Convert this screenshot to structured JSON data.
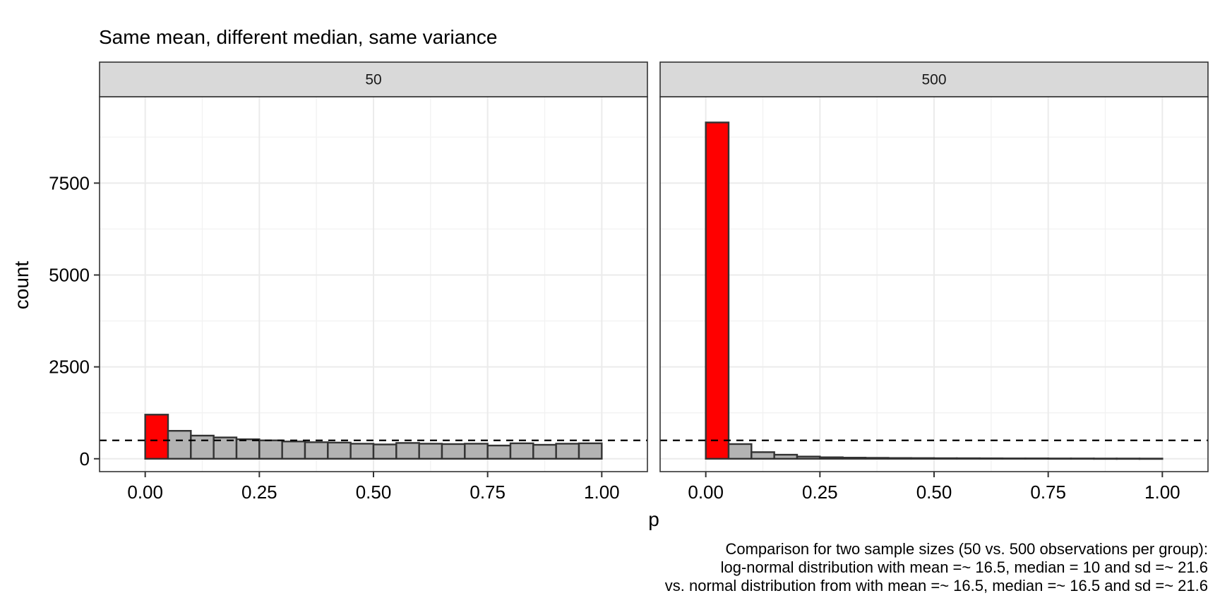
{
  "chart_data": {
    "type": "bar",
    "title": "Same mean, different median, same variance",
    "xlabel": "p",
    "ylabel": "count",
    "xlim": [
      -0.1,
      1.1
    ],
    "ylim": [
      -350,
      9850
    ],
    "x_ticks": [
      0.0,
      0.25,
      0.5,
      0.75,
      1.0
    ],
    "x_tick_labels": [
      "0.00",
      "0.25",
      "0.50",
      "0.75",
      "1.00"
    ],
    "y_ticks": [
      0,
      2500,
      5000,
      7500
    ],
    "y_tick_labels": [
      "0",
      "2500",
      "5000",
      "7500"
    ],
    "reference_line": {
      "y": 500,
      "style": "dashed"
    },
    "grid": true,
    "highlight_color": "#ff0000",
    "bar_color": "#b3b3b3",
    "bar_outline": "#333333",
    "bin_width": 0.05,
    "panels": [
      {
        "strip_label": "50",
        "bins_left": [
          0.0,
          0.05,
          0.1,
          0.15,
          0.2,
          0.25,
          0.3,
          0.35,
          0.4,
          0.45,
          0.5,
          0.55,
          0.6,
          0.65,
          0.7,
          0.75,
          0.8,
          0.85,
          0.9,
          0.95
        ],
        "values": [
          1200,
          760,
          630,
          580,
          530,
          500,
          470,
          450,
          440,
          410,
          390,
          430,
          410,
          400,
          410,
          360,
          420,
          380,
          410,
          420
        ],
        "highlighted": [
          true,
          false,
          false,
          false,
          false,
          false,
          false,
          false,
          false,
          false,
          false,
          false,
          false,
          false,
          false,
          false,
          false,
          false,
          false,
          false
        ]
      },
      {
        "strip_label": "500",
        "bins_left": [
          0.0,
          0.05,
          0.1,
          0.15,
          0.2,
          0.25,
          0.3,
          0.35,
          0.4,
          0.45,
          0.5,
          0.55,
          0.6,
          0.65,
          0.7,
          0.75,
          0.8,
          0.85,
          0.9,
          0.95
        ],
        "values": [
          9150,
          400,
          180,
          110,
          60,
          40,
          30,
          25,
          20,
          18,
          15,
          14,
          12,
          10,
          10,
          8,
          8,
          6,
          6,
          5
        ],
        "highlighted": [
          true,
          false,
          false,
          false,
          false,
          false,
          false,
          false,
          false,
          false,
          false,
          false,
          false,
          false,
          false,
          false,
          false,
          false,
          false,
          false
        ]
      }
    ],
    "caption": [
      "Comparison for two sample sizes (50 vs. 500 observations per group):",
      "log-normal distribution with mean =~ 16.5, median = 10 and sd =~ 21.6",
      "vs. normal distribution from with mean =~ 16.5, median =~ 16.5 and sd =~ 21.6"
    ]
  }
}
